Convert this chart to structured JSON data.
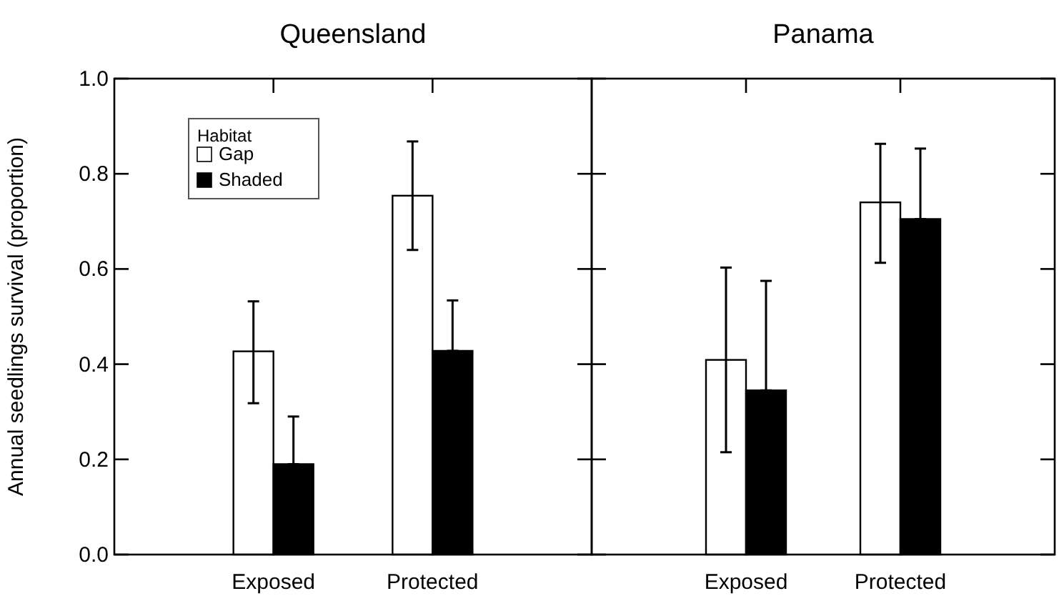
{
  "chart_data": [
    {
      "type": "bar",
      "title": "Queensland",
      "ylabel": "Annual seedlings survival (proportion)",
      "categories": [
        "Exposed",
        "Protected"
      ],
      "legend": "top left",
      "legend_title": "Habitat",
      "series": [
        {
          "name": "Gap",
          "color": "#ffffff",
          "values": [
            0.427,
            0.754
          ],
          "errors": [
            [
              0.318,
              0.532
            ],
            [
              0.64,
              0.868
            ]
          ]
        },
        {
          "name": "Shaded",
          "color": "#000000",
          "values": [
            0.19,
            0.428
          ],
          "errors": [
            [
              0.19,
              0.29
            ],
            [
              0.428,
              0.534
            ]
          ]
        }
      ],
      "ylim": [
        0,
        1
      ],
      "yticks": [
        {
          "value": 0,
          "label": "0.0"
        },
        {
          "value": 0.2,
          "label": "0.2"
        },
        {
          "value": 0.4,
          "label": "0.4"
        },
        {
          "value": 0.6,
          "label": "0.6"
        },
        {
          "value": 0.8,
          "label": "0.8"
        },
        {
          "value": 1,
          "label": "1.0"
        }
      ]
    },
    {
      "type": "bar",
      "title": "Panama",
      "categories": [
        "Exposed",
        "Protected"
      ],
      "tick_labels": "x",
      "series": [
        {
          "color": "#ffffff",
          "values": [
            0.409,
            0.74
          ],
          "errors": [
            [
              0.215,
              0.603
            ],
            [
              0.613,
              0.863
            ]
          ]
        },
        {
          "color": "#000000",
          "values": [
            0.345,
            0.705
          ],
          "errors": [
            [
              0.345,
              0.575
            ],
            [
              0.705,
              0.853
            ]
          ]
        }
      ],
      "ylim": [
        0,
        1
      ],
      "yticks": [
        {
          "value": 0,
          "label": null
        },
        {
          "value": 0.2,
          "label": null
        },
        {
          "value": 0.4,
          "label": null
        },
        {
          "value": 0.6,
          "label": null
        },
        {
          "value": 0.8,
          "label": null
        },
        {
          "value": 1,
          "label": null
        }
      ]
    }
  ]
}
